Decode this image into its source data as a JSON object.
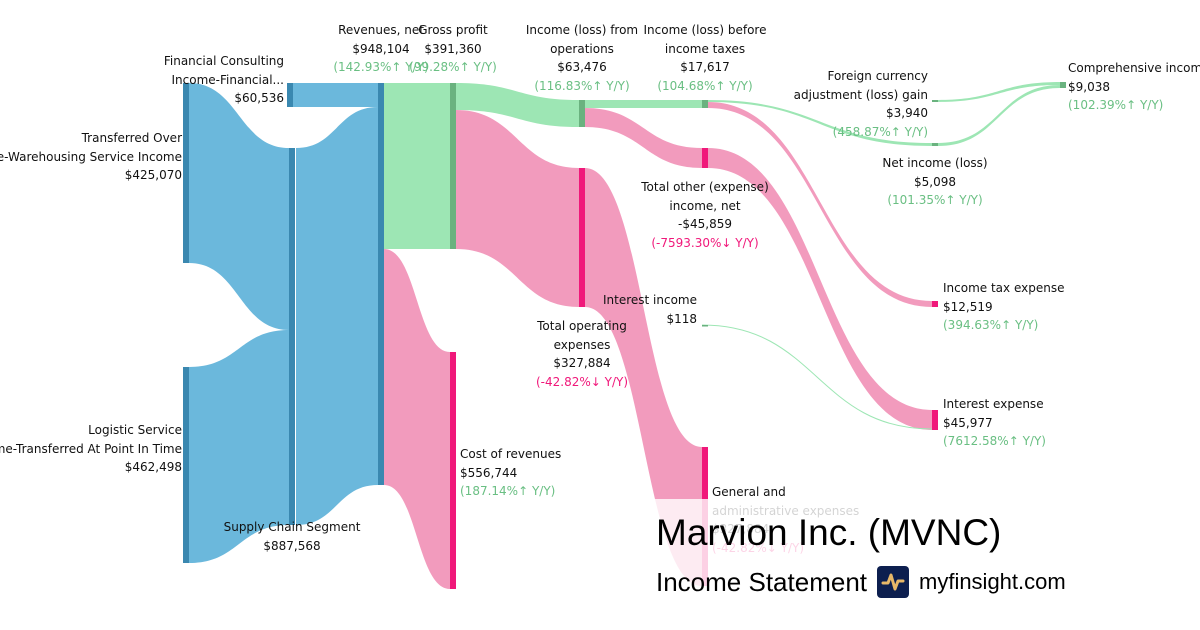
{
  "colors": {
    "blue_link": "#6bb8dc",
    "blue_node": "#3a88b0",
    "green_link": "#9de6b4",
    "green_node": "#6ab27f",
    "pink_link": "#f29bbd",
    "pink_node": "#f0187a",
    "up": "#6abf83",
    "down": "#f0187a"
  },
  "nodes": {
    "financial_consulting": {
      "name1": "Financial Consulting",
      "name2": "Income-Financial...",
      "value": "$60,536"
    },
    "transferred_over": {
      "name1": "Transferred Over",
      "name2": "me-Warehousing Service Income",
      "value": "$425,070"
    },
    "logistic_service": {
      "name1": "Logistic Service",
      "name2": "me-Transferred At Point In Time",
      "value": "$462,498"
    },
    "supply_chain": {
      "name": "Supply Chain Segment",
      "value": "$887,568"
    },
    "revenues": {
      "name": "Revenues, net",
      "value": "$948,104",
      "change": "(142.93%↑ Y/Y)"
    },
    "gross_profit": {
      "name": "Gross profit",
      "value": "$391,360",
      "change": "(99.28%↑ Y/Y)"
    },
    "cost_of_revenues": {
      "name": "Cost of revenues",
      "value": "$556,744",
      "change": "(187.14%↑  Y/Y)"
    },
    "income_from_operations": {
      "name1": "Income (loss) from",
      "name2": "operations",
      "value": "$63,476",
      "change": "(116.83%↑ Y/Y)"
    },
    "total_operating_expenses": {
      "name1": "Total operating",
      "name2": "expenses",
      "value": "$327,884",
      "change": "(-42.82%↓ Y/Y)"
    },
    "income_before_taxes": {
      "name1": "Income (loss) before",
      "name2": "income taxes",
      "value": "$17,617",
      "change": "(104.68%↑ Y/Y)"
    },
    "total_other": {
      "name1": "Total other (expense)",
      "name2": "income, net",
      "value": "-$45,859",
      "change": "(-7593.30%↓ Y/Y)"
    },
    "interest_income": {
      "name": "Interest income",
      "value": "$118"
    },
    "general_admin": {
      "name1": "General and",
      "name2": "administrative expenses",
      "value": "$327,884",
      "change": "(-42.82%↓ Y/Y)"
    },
    "foreign_currency": {
      "name1": "Foreign currency",
      "name2": "adjustment (loss) gain",
      "value": "$3,940",
      "change": "(458.87%↑ Y/Y)"
    },
    "net_income": {
      "name": "Net income (loss)",
      "value": "$5,098",
      "change": "(101.35%↑ Y/Y)"
    },
    "income_tax": {
      "name": "Income tax expense",
      "value": "$12,519",
      "change": "(394.63%↑ Y/Y)"
    },
    "interest_expense": {
      "name": "Interest expense",
      "value": "$45,977",
      "change": "(7612.58%↑ Y/Y)"
    },
    "comprehensive_income": {
      "name": "Comprehensive income",
      "value": "$9,038",
      "change": "(102.39%↑ Y/Y)"
    }
  },
  "title": "Marvion Inc. (MVNC)",
  "subtitle": "Income Statement",
  "site": "myfinsight.com"
}
